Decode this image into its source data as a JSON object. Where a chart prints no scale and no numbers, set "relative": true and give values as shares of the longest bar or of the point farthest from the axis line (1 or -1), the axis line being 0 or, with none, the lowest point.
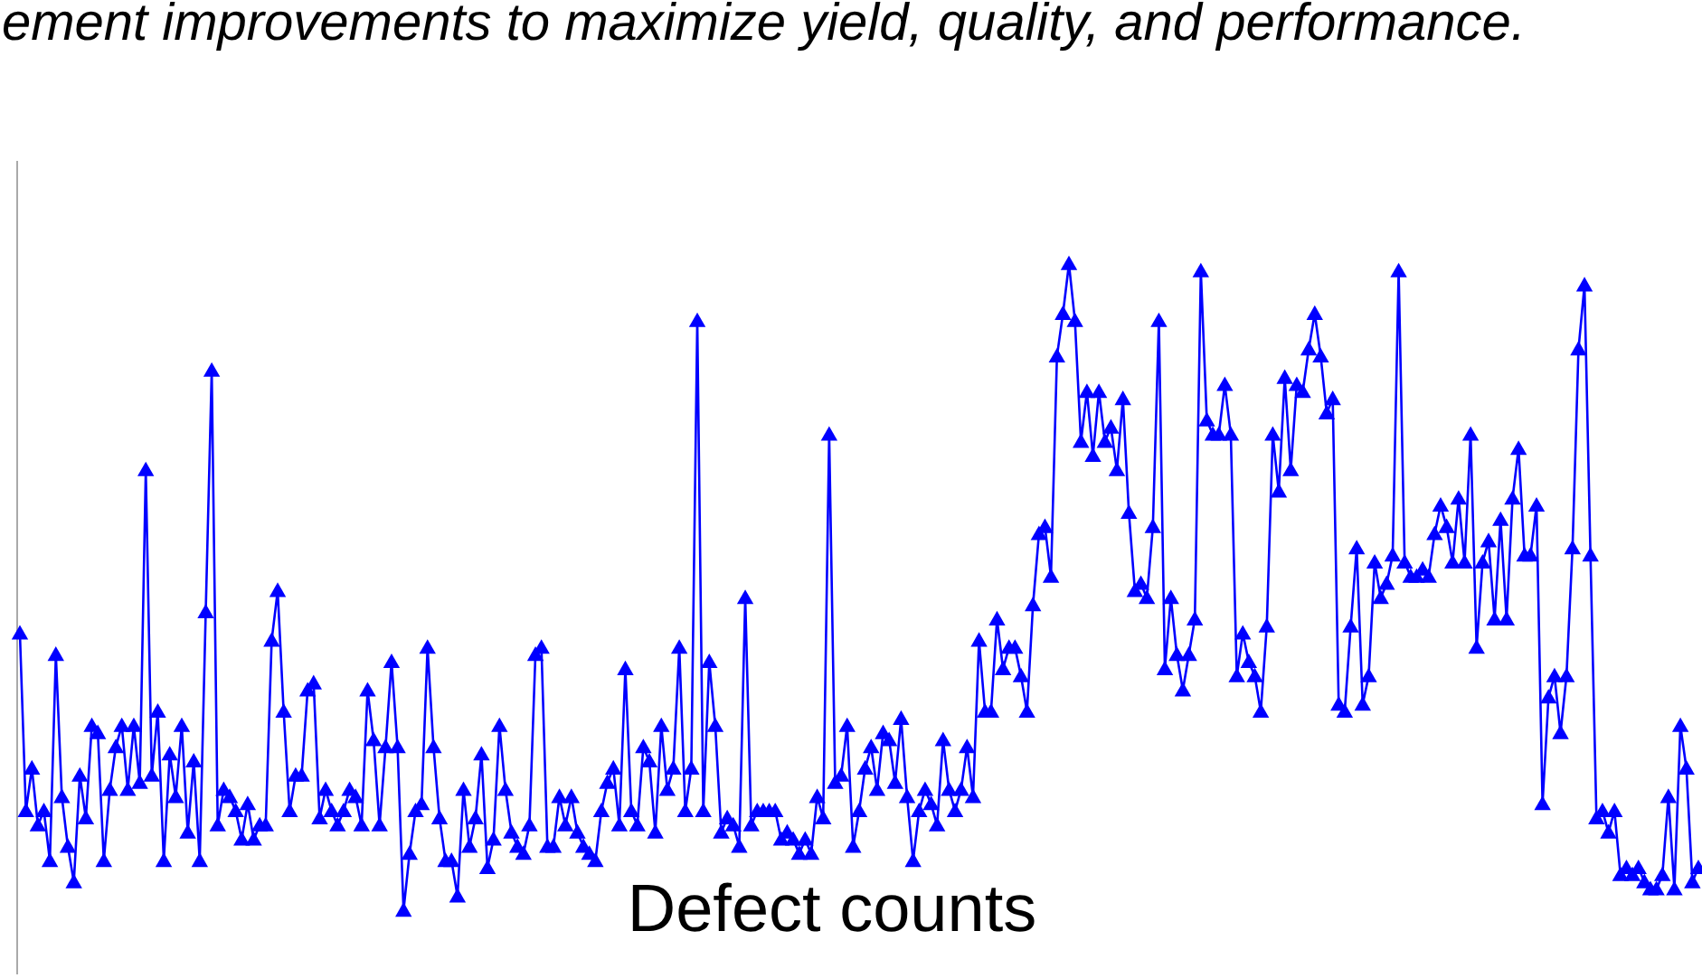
{
  "chart_data": {
    "type": "line",
    "title": "ement improvements to maximize yield, quality, and performance.",
    "annotations": [
      "Defect counts"
    ],
    "relative": true,
    "marker": "triangle",
    "categories": [
      null,
      null,
      null,
      null,
      null,
      null,
      null,
      null,
      null,
      null,
      null,
      null,
      null,
      null,
      null,
      null,
      null,
      null,
      null,
      null,
      null,
      null,
      null,
      null,
      null,
      null,
      null,
      null,
      null,
      null,
      null,
      null,
      null,
      null,
      null,
      null,
      null,
      null,
      null,
      null,
      null,
      null,
      null,
      null,
      null,
      null,
      null,
      null,
      null,
      null,
      null,
      null,
      null,
      null,
      null,
      null,
      null,
      null,
      null,
      null,
      null,
      null,
      null,
      null,
      null,
      null,
      null,
      null,
      null,
      null,
      null,
      null,
      null,
      null,
      null,
      null,
      null,
      null,
      null,
      null,
      null,
      null,
      null,
      null,
      null,
      null,
      null,
      null,
      null,
      null,
      null,
      null,
      null,
      null,
      null,
      null,
      null,
      null,
      null,
      null,
      null,
      null,
      null,
      null,
      null,
      null,
      null,
      null,
      null,
      null,
      null,
      null,
      null,
      null,
      null,
      null,
      null,
      null,
      null,
      null,
      null,
      null,
      null,
      null,
      null,
      null,
      null,
      null,
      null,
      null,
      null,
      null,
      null,
      null,
      null,
      null,
      null,
      null,
      null,
      null,
      null,
      null,
      null,
      null,
      null,
      null,
      null,
      null,
      null,
      null,
      null,
      null,
      null,
      null,
      null,
      null,
      null,
      null,
      null,
      null,
      null,
      null,
      null,
      null,
      null,
      null,
      null,
      null,
      null,
      null,
      null,
      null,
      null,
      null,
      null,
      null,
      null,
      null,
      null,
      null,
      null,
      null,
      null,
      null,
      null,
      null,
      null,
      null,
      null,
      null,
      null,
      null,
      null,
      null,
      null,
      null,
      null,
      null,
      null,
      null,
      null,
      null,
      null,
      null,
      null,
      null,
      null,
      null,
      null,
      null,
      null,
      null,
      null,
      null,
      null,
      null,
      null,
      null,
      null,
      null,
      null,
      null,
      null,
      null,
      null,
      null,
      null,
      null,
      null,
      null,
      null,
      null,
      null,
      null,
      null,
      null,
      null,
      null,
      null,
      null,
      null,
      null,
      null,
      null,
      null,
      null,
      null,
      null,
      null,
      null,
      null,
      null,
      null,
      null,
      null,
      null,
      null,
      null,
      null,
      null,
      null,
      null,
      null,
      null,
      null,
      null,
      null,
      null,
      null,
      null,
      null,
      null,
      null,
      null,
      null,
      null,
      null,
      null,
      null,
      null,
      null
    ],
    "series": [
      {
        "color": "#0000ff",
        "values": [
          0.48,
          0.23,
          0.29,
          0.21,
          0.23,
          0.16,
          0.45,
          0.25,
          0.18,
          0.13,
          0.28,
          0.22,
          0.35,
          0.34,
          0.16,
          0.26,
          0.32,
          0.35,
          0.26,
          0.35,
          0.27,
          0.71,
          0.28,
          0.37,
          0.16,
          0.31,
          0.25,
          0.35,
          0.2,
          0.3,
          0.16,
          0.51,
          0.85,
          0.21,
          0.26,
          0.25,
          0.23,
          0.19,
          0.24,
          0.19,
          0.21,
          0.21,
          0.47,
          0.54,
          0.37,
          0.23,
          0.28,
          0.28,
          0.4,
          0.41,
          0.22,
          0.26,
          0.23,
          0.21,
          0.23,
          0.26,
          0.25,
          0.21,
          0.4,
          0.33,
          0.21,
          0.32,
          0.44,
          0.32,
          0.09,
          0.17,
          0.23,
          0.24,
          0.46,
          0.32,
          0.22,
          0.16,
          0.16,
          0.11,
          0.26,
          0.18,
          0.22,
          0.31,
          0.15,
          0.19,
          0.35,
          0.26,
          0.2,
          0.18,
          0.17,
          0.21,
          0.45,
          0.46,
          0.18,
          0.18,
          0.25,
          0.21,
          0.25,
          0.2,
          0.18,
          0.17,
          0.16,
          0.23,
          0.27,
          0.29,
          0.21,
          0.43,
          0.23,
          0.21,
          0.32,
          0.3,
          0.2,
          0.35,
          0.26,
          0.29,
          0.46,
          0.23,
          0.29,
          0.92,
          0.23,
          0.44,
          0.35,
          0.2,
          0.22,
          0.21,
          0.18,
          0.53,
          0.21,
          0.23,
          0.23,
          0.23,
          0.23,
          0.19,
          0.2,
          0.19,
          0.17,
          0.19,
          0.17,
          0.25,
          0.22,
          0.76,
          0.27,
          0.28,
          0.35,
          0.18,
          0.23,
          0.29,
          0.32,
          0.26,
          0.34,
          0.33,
          0.27,
          0.36,
          0.25,
          0.16,
          0.23,
          0.26,
          0.24,
          0.21,
          0.33,
          0.26,
          0.23,
          0.26,
          0.32,
          0.25,
          0.47,
          0.37,
          0.37,
          0.5,
          0.43,
          0.46,
          0.46,
          0.42,
          0.37,
          0.52,
          0.62,
          0.63,
          0.56,
          0.87,
          0.93,
          1.0,
          0.92,
          0.75,
          0.82,
          0.73,
          0.82,
          0.75,
          0.77,
          0.71,
          0.81,
          0.65,
          0.54,
          0.55,
          0.53,
          0.63,
          0.92,
          0.43,
          0.53,
          0.45,
          0.4,
          0.45,
          0.5,
          0.99,
          0.78,
          0.76,
          0.76,
          0.83,
          0.76,
          0.42,
          0.48,
          0.44,
          0.42,
          0.37,
          0.49,
          0.76,
          0.68,
          0.84,
          0.71,
          0.83,
          0.82,
          0.88,
          0.93,
          0.87,
          0.79,
          0.81,
          0.38,
          0.37,
          0.49,
          0.6,
          0.38,
          0.42,
          0.58,
          0.53,
          0.55,
          0.59,
          0.99,
          0.58,
          0.56,
          0.56,
          0.57,
          0.56,
          0.62,
          0.66,
          0.63,
          0.58,
          0.67,
          0.58,
          0.76,
          0.46,
          0.58,
          0.61,
          0.5,
          0.64,
          0.5,
          0.67,
          0.74,
          0.59,
          0.59,
          0.66,
          0.24,
          0.39,
          0.42,
          0.34,
          0.42,
          0.6,
          0.88,
          0.97,
          0.59,
          0.22,
          0.23,
          0.2,
          0.23,
          0.14,
          0.15,
          0.14,
          0.15,
          0.13,
          0.12,
          0.12,
          0.14,
          0.25,
          0.12,
          0.35,
          0.29,
          0.13,
          0.15
        ]
      }
    ]
  }
}
